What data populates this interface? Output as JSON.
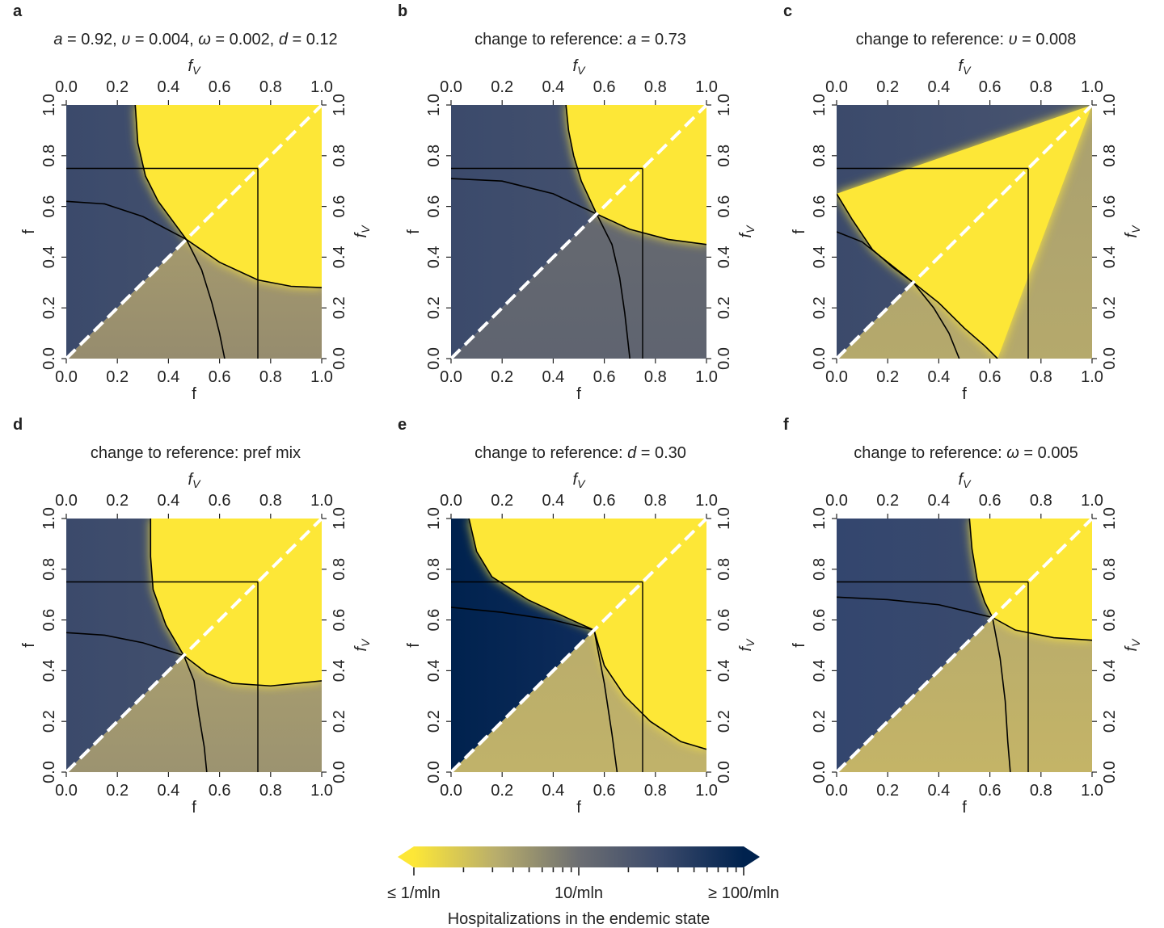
{
  "colors": {
    "yellow": "#fde737",
    "tan": "#b8ad6c",
    "grey": "#6c6e72",
    "slate": "#3b4a6b",
    "navy": "#00224e",
    "line": "#000000",
    "diag": "#ffffff"
  },
  "chart_data": [
    {
      "type": "heatmap",
      "panel_letter": "a",
      "title_html": "<tspan font-style='italic'>a</tspan> = 0.92, <tspan font-style='italic'>υ</tspan> = 0.004, <tspan font-style='italic'>ω</tspan> = 0.002, <tspan font-style='italic'>d</tspan> = 0.12",
      "xlabel_bottom": "f",
      "ylabel_left": "f",
      "xlabel_top": "f",
      "xlabel_top_sub": "V",
      "ylabel_right": "f",
      "ylabel_right_sub": "V",
      "ticks": [
        "0.0",
        "0.2",
        "0.4",
        "0.6",
        "0.8",
        "1.0"
      ],
      "xlim": [
        0,
        1
      ],
      "ylim": [
        0,
        1
      ],
      "reference": {
        "f": 0.75,
        "fV": 0.75
      },
      "threshold": 0.47,
      "upper_colors": [
        "#3b4a6b",
        "#4a5570"
      ],
      "lower_colors": [
        "#b5a96c",
        "#968c6e"
      ],
      "curve_h": [
        [
          0,
          0.62
        ],
        [
          0.15,
          0.61
        ],
        [
          0.3,
          0.56
        ],
        [
          0.47,
          0.47
        ],
        [
          0.6,
          0.38
        ],
        [
          0.75,
          0.31
        ],
        [
          0.88,
          0.285
        ],
        [
          1.0,
          0.28
        ]
      ],
      "curve_v": [
        [
          0.27,
          1.0
        ],
        [
          0.28,
          0.85
        ],
        [
          0.31,
          0.72
        ],
        [
          0.36,
          0.62
        ],
        [
          0.47,
          0.47
        ],
        [
          0.53,
          0.35
        ],
        [
          0.57,
          0.22
        ],
        [
          0.6,
          0.1
        ],
        [
          0.62,
          0.0
        ]
      ]
    },
    {
      "type": "heatmap",
      "panel_letter": "b",
      "title_html": "change to reference: <tspan font-style='italic'>a</tspan> = 0.73",
      "xlabel_bottom": "f",
      "ylabel_left": "f",
      "xlabel_top": "f",
      "xlabel_top_sub": "V",
      "ylabel_right": "f",
      "ylabel_right_sub": "V",
      "ticks": [
        "0.0",
        "0.2",
        "0.4",
        "0.6",
        "0.8",
        "1.0"
      ],
      "xlim": [
        0,
        1
      ],
      "ylim": [
        0,
        1
      ],
      "reference": {
        "f": 0.75,
        "fV": 0.75
      },
      "threshold": 0.57,
      "upper_colors": [
        "#3b4a6b",
        "#4a5570"
      ],
      "lower_colors": [
        "#6b6d70",
        "#5f6470"
      ],
      "curve_h": [
        [
          0,
          0.71
        ],
        [
          0.2,
          0.7
        ],
        [
          0.4,
          0.65
        ],
        [
          0.57,
          0.57
        ],
        [
          0.7,
          0.51
        ],
        [
          0.85,
          0.47
        ],
        [
          1.0,
          0.45
        ]
      ],
      "curve_v": [
        [
          0.45,
          1.0
        ],
        [
          0.46,
          0.9
        ],
        [
          0.48,
          0.8
        ],
        [
          0.51,
          0.7
        ],
        [
          0.57,
          0.57
        ],
        [
          0.63,
          0.45
        ],
        [
          0.66,
          0.32
        ],
        [
          0.68,
          0.18
        ],
        [
          0.7,
          0.0
        ]
      ]
    },
    {
      "type": "heatmap",
      "panel_letter": "c",
      "title_html": "change to reference: <tspan font-style='italic'>υ</tspan> = 0.008",
      "xlabel_bottom": "f",
      "ylabel_left": "f",
      "xlabel_top": "f",
      "xlabel_top_sub": "V",
      "ylabel_right": "f",
      "ylabel_right_sub": "V",
      "ticks": [
        "0.0",
        "0.2",
        "0.4",
        "0.6",
        "0.8",
        "1.0"
      ],
      "xlim": [
        0,
        1
      ],
      "ylim": [
        0,
        1
      ],
      "reference": {
        "f": 0.75,
        "fV": 0.75
      },
      "threshold": 0.3,
      "upper_colors": [
        "#3b4a6b",
        "#4a5570"
      ],
      "lower_colors": [
        "#a9a070",
        "#b5a96c"
      ],
      "curve_h": [
        [
          0,
          0.5
        ],
        [
          0.1,
          0.46
        ],
        [
          0.2,
          0.38
        ],
        [
          0.3,
          0.3
        ],
        [
          0.4,
          0.22
        ],
        [
          0.5,
          0.12
        ],
        [
          0.58,
          0.05
        ],
        [
          0.63,
          0.0
        ]
      ],
      "curve_v": [
        [
          0,
          0.65
        ],
        [
          0.06,
          0.55
        ],
        [
          0.14,
          0.43
        ],
        [
          0.22,
          0.36
        ],
        [
          0.3,
          0.3
        ],
        [
          0.38,
          0.2
        ],
        [
          0.44,
          0.1
        ],
        [
          0.48,
          0.0
        ]
      ]
    },
    {
      "type": "heatmap",
      "panel_letter": "d",
      "title_html": "change to reference: pref mix",
      "xlabel_bottom": "f",
      "ylabel_left": "f",
      "xlabel_top": "f",
      "xlabel_top_sub": "V",
      "ylabel_right": "f",
      "ylabel_right_sub": "V",
      "ticks": [
        "0.0",
        "0.2",
        "0.4",
        "0.6",
        "0.8",
        "1.0"
      ],
      "xlim": [
        0,
        1
      ],
      "ylim": [
        0,
        1
      ],
      "reference": {
        "f": 0.75,
        "fV": 0.75
      },
      "threshold": 0.46,
      "upper_colors": [
        "#3b4a6b",
        "#4a5570"
      ],
      "lower_colors": [
        "#b5a96c",
        "#9c9370"
      ],
      "curve_h": [
        [
          0,
          0.55
        ],
        [
          0.15,
          0.54
        ],
        [
          0.3,
          0.51
        ],
        [
          0.46,
          0.46
        ],
        [
          0.55,
          0.39
        ],
        [
          0.65,
          0.35
        ],
        [
          0.8,
          0.34
        ],
        [
          1.0,
          0.36
        ]
      ],
      "curve_v": [
        [
          0.33,
          1.0
        ],
        [
          0.33,
          0.85
        ],
        [
          0.34,
          0.72
        ],
        [
          0.39,
          0.58
        ],
        [
          0.46,
          0.46
        ],
        [
          0.5,
          0.36
        ],
        [
          0.52,
          0.22
        ],
        [
          0.54,
          0.1
        ],
        [
          0.55,
          0.0
        ]
      ]
    },
    {
      "type": "heatmap",
      "panel_letter": "e",
      "title_html": "change to reference: <tspan font-style='italic'>d</tspan> = 0.30",
      "xlabel_bottom": "f",
      "ylabel_left": "f",
      "xlabel_top": "f",
      "xlabel_top_sub": "V",
      "ylabel_right": "f",
      "ylabel_right_sub": "V",
      "ticks": [
        "0.0",
        "0.2",
        "0.4",
        "0.6",
        "0.8",
        "1.0"
      ],
      "xlim": [
        0,
        1
      ],
      "ylim": [
        0,
        1
      ],
      "reference": {
        "f": 0.75,
        "fV": 0.75
      },
      "threshold": 0.56,
      "upper_colors": [
        "#00224e",
        "#1a3466"
      ],
      "lower_colors": [
        "#b5a96c",
        "#c0b26a"
      ],
      "curve_h": [
        [
          0,
          0.65
        ],
        [
          0.2,
          0.63
        ],
        [
          0.4,
          0.6
        ],
        [
          0.56,
          0.56
        ],
        [
          0.6,
          0.42
        ],
        [
          0.68,
          0.3
        ],
        [
          0.78,
          0.2
        ],
        [
          0.9,
          0.12
        ],
        [
          1.0,
          0.09
        ]
      ],
      "curve_v": [
        [
          0.07,
          1.0
        ],
        [
          0.1,
          0.87
        ],
        [
          0.16,
          0.77
        ],
        [
          0.3,
          0.68
        ],
        [
          0.45,
          0.61
        ],
        [
          0.56,
          0.56
        ],
        [
          0.6,
          0.35
        ],
        [
          0.63,
          0.15
        ],
        [
          0.65,
          0.0
        ]
      ]
    },
    {
      "type": "heatmap",
      "panel_letter": "f",
      "title_html": "change to reference: <tspan font-style='italic'>ω</tspan> = 0.005",
      "xlabel_bottom": "f",
      "ylabel_left": "f",
      "xlabel_top": "f",
      "xlabel_top_sub": "V",
      "ylabel_right": "f",
      "ylabel_right_sub": "V",
      "ticks": [
        "0.0",
        "0.2",
        "0.4",
        "0.6",
        "0.8",
        "1.0"
      ],
      "xlim": [
        0,
        1
      ],
      "ylim": [
        0,
        1
      ],
      "reference": {
        "f": 0.75,
        "fV": 0.75
      },
      "threshold": 0.61,
      "upper_colors": [
        "#33466e",
        "#3e4c6c"
      ],
      "lower_colors": [
        "#b3a86e",
        "#c4b467"
      ],
      "curve_h": [
        [
          0,
          0.69
        ],
        [
          0.2,
          0.68
        ],
        [
          0.4,
          0.66
        ],
        [
          0.61,
          0.61
        ],
        [
          0.7,
          0.56
        ],
        [
          0.85,
          0.53
        ],
        [
          1.0,
          0.52
        ]
      ],
      "curve_v": [
        [
          0.52,
          1.0
        ],
        [
          0.53,
          0.88
        ],
        [
          0.55,
          0.76
        ],
        [
          0.58,
          0.67
        ],
        [
          0.61,
          0.61
        ],
        [
          0.64,
          0.45
        ],
        [
          0.66,
          0.28
        ],
        [
          0.67,
          0.12
        ],
        [
          0.68,
          0.0
        ]
      ]
    }
  ],
  "colorbar": {
    "title": "Hospitalizations in the endemic state",
    "tick_labels": [
      {
        "value": 1,
        "label": "≤ 1/mln"
      },
      {
        "value": 10,
        "label": "10/mln"
      },
      {
        "value": 100,
        "label": "≥ 100/mln"
      }
    ],
    "minor_ticks": [
      2,
      3,
      4,
      5,
      6,
      7,
      8,
      9,
      20,
      30,
      40,
      50,
      60,
      70,
      80,
      90
    ],
    "range": [
      1,
      100
    ],
    "scale": "log"
  }
}
